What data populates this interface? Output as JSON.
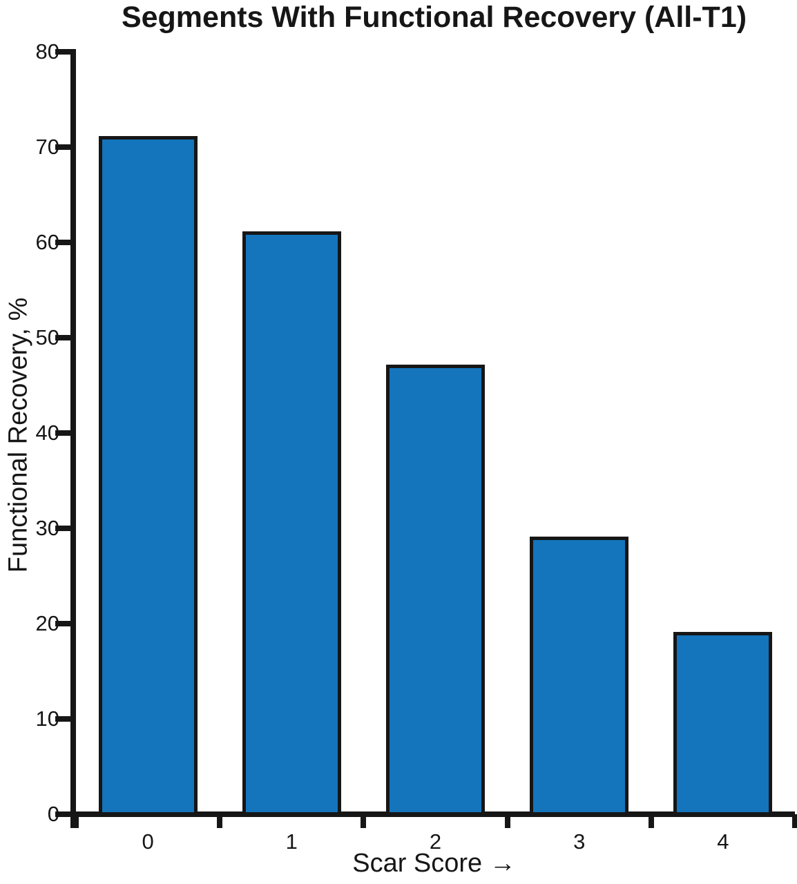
{
  "chart_data": {
    "type": "bar",
    "title": "Segments With Functional Recovery (All-T1)",
    "xlabel": "Scar Score →",
    "ylabel": "Functional Recovery, %",
    "categories": [
      "0",
      "1",
      "2",
      "3",
      "4"
    ],
    "values": [
      71,
      61,
      47,
      29,
      19
    ],
    "ylim": [
      0,
      80
    ],
    "yticks": [
      0,
      10,
      20,
      30,
      40,
      50,
      60,
      70,
      80
    ],
    "grid": false,
    "legend": "none",
    "bar_color": "#1475BC",
    "bar_border_color": "#161616",
    "axis_color": "#161616",
    "background_color": "#ffffff"
  }
}
